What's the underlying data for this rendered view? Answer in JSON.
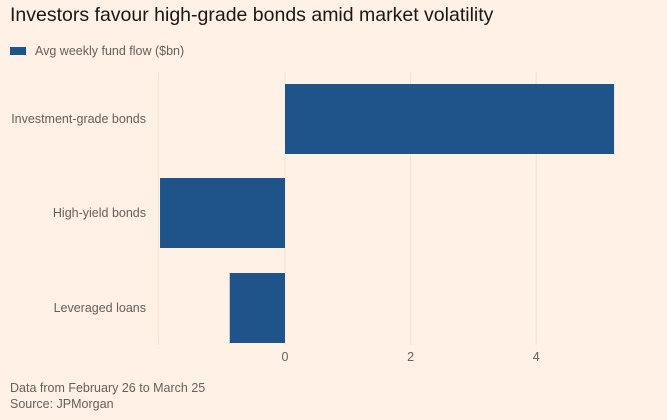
{
  "chart_data": {
    "type": "bar",
    "orientation": "horizontal",
    "title": "Investors favour high-grade bonds amid market volatility",
    "categories": [
      "Investment-grade bonds",
      "High-yield bonds",
      "Leveraged loans"
    ],
    "series": [
      {
        "name": "Avg weekly fund flow ($bn)",
        "values": [
          5.24,
          -1.99,
          -0.88
        ],
        "color": "#1f548b"
      }
    ],
    "xlabel": "",
    "ylabel": "",
    "xlim": [
      -2.0,
      5.5
    ],
    "xticks": [
      0,
      2,
      4
    ],
    "xtick_labels": [
      "0",
      "2",
      "4"
    ],
    "grid": true,
    "legend_position": "top-left"
  },
  "footer": {
    "note": "Data from February 26 to March 25",
    "source": "Source: JPMorgan"
  }
}
